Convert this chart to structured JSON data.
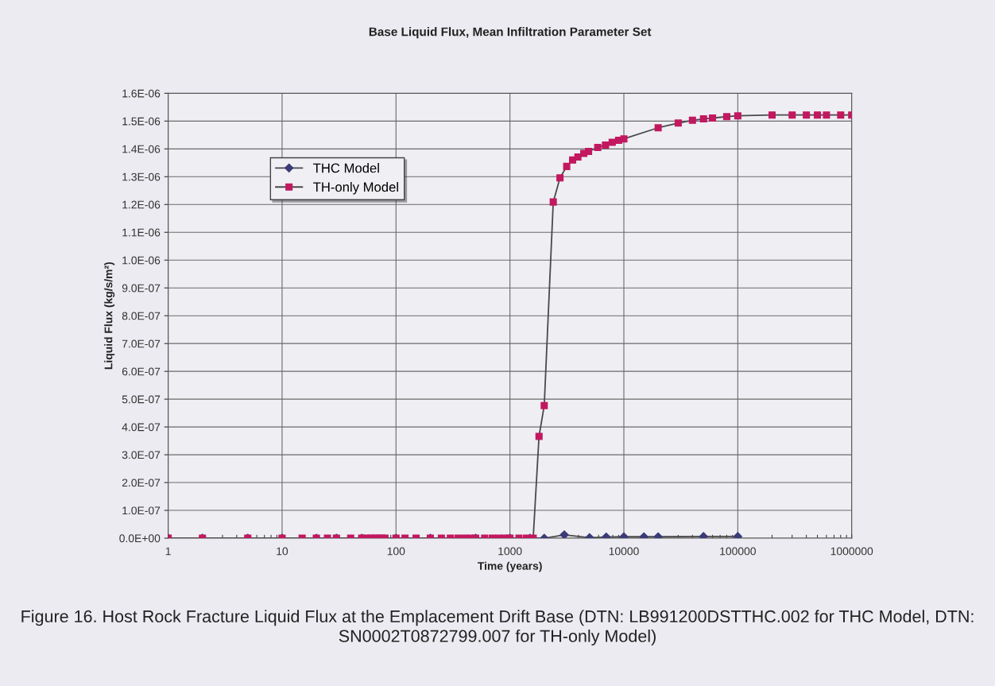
{
  "chart_data": {
    "type": "line",
    "title": "Base Liquid Flux, Mean Infiltration Parameter Set",
    "xlabel": "Time (years)",
    "ylabel": "Liquid Flux (kg/s/m²)",
    "annotations": [
      "Figure 16. Host Rock Fracture Liquid Flux at the Emplacement Drift Base (DTN: LB991200DSTTHC.002 for THC Model, DTN: SN0002T0872799.007 for TH-only Model)"
    ],
    "log": "x",
    "xlim": [
      1,
      1000000
    ],
    "xticks": [
      1,
      10,
      100,
      1000,
      10000,
      100000,
      1000000
    ],
    "ylim": [
      0,
      1.6e-06
    ],
    "yticks": [
      {
        "value": 0,
        "label": "0.0E+00"
      },
      {
        "value": 1e-07,
        "label": "1.0E-07"
      },
      {
        "value": 2e-07,
        "label": "2.0E-07"
      },
      {
        "value": 3e-07,
        "label": "3.0E-07"
      },
      {
        "value": 4e-07,
        "label": "4.0E-07"
      },
      {
        "value": 5e-07,
        "label": "5.0E-07"
      },
      {
        "value": 6e-07,
        "label": "6.0E-07"
      },
      {
        "value": 7e-07,
        "label": "7.0E-07"
      },
      {
        "value": 8e-07,
        "label": "8.0E-07"
      },
      {
        "value": 9e-07,
        "label": "9.0E-07"
      },
      {
        "value": 1e-06,
        "label": "1.0E-06"
      },
      {
        "value": 1.1e-06,
        "label": "1.1E-06"
      },
      {
        "value": 1.2e-06,
        "label": "1.2E-06"
      },
      {
        "value": 1.3e-06,
        "label": "1.3E-06"
      },
      {
        "value": 1.4e-06,
        "label": "1.4E-06"
      },
      {
        "value": 1.5e-06,
        "label": "1.5E-06"
      },
      {
        "value": 1.6e-06,
        "label": "1.6E-06"
      }
    ],
    "grid": true,
    "legend": "top left",
    "series": [
      {
        "name": "THC Model",
        "color": "#3b3b78",
        "marker": "diamond",
        "x": [
          1,
          2,
          5,
          10,
          20,
          30,
          50,
          100,
          200,
          500,
          1000,
          1500,
          2000,
          3000,
          5000,
          7000,
          10000,
          15000,
          20000,
          50000,
          100000
        ],
        "values": [
          0,
          0,
          0,
          0,
          0,
          0,
          0,
          0,
          0,
          0,
          0,
          0,
          0,
          1.2e-08,
          2e-09,
          4e-09,
          5e-09,
          5e-09,
          5e-09,
          6e-09,
          6e-09
        ]
      },
      {
        "name": "TH-only Model",
        "color": "#c2185f",
        "marker": "square",
        "x": [
          1,
          2,
          5,
          10,
          15,
          20,
          25,
          30,
          40,
          50,
          55,
          60,
          65,
          70,
          75,
          80,
          100,
          120,
          150,
          200,
          250,
          300,
          350,
          400,
          450,
          500,
          600,
          700,
          800,
          900,
          1000,
          1200,
          1400,
          1600,
          1800,
          2000,
          2400,
          2750,
          3150,
          3550,
          3950,
          4450,
          4900,
          5900,
          6900,
          7900,
          9000,
          10000,
          20000,
          30000,
          40000,
          50000,
          60000,
          80000,
          100000,
          200000,
          300000,
          400000,
          500000,
          600000,
          800000,
          1000000
        ],
        "values": [
          0,
          0,
          0,
          0,
          0,
          0,
          0,
          0,
          0,
          0,
          0,
          0,
          0,
          0,
          0,
          0,
          0,
          0,
          0,
          0,
          0,
          0,
          0,
          0,
          0,
          0,
          0,
          0,
          0,
          0,
          0,
          0,
          0,
          0,
          3.66e-07,
          4.77e-07,
          1.209e-06,
          1.296e-06,
          1.337e-06,
          1.36e-06,
          1.371e-06,
          1.384e-06,
          1.391e-06,
          1.405e-06,
          1.414e-06,
          1.424e-06,
          1.431e-06,
          1.436e-06,
          1.476e-06,
          1.493e-06,
          1.503e-06,
          1.508e-06,
          1.511e-06,
          1.516e-06,
          1.519e-06,
          1.522e-06,
          1.522e-06,
          1.522e-06,
          1.522e-06,
          1.522e-06,
          1.522e-06,
          1.522e-06
        ]
      }
    ]
  }
}
